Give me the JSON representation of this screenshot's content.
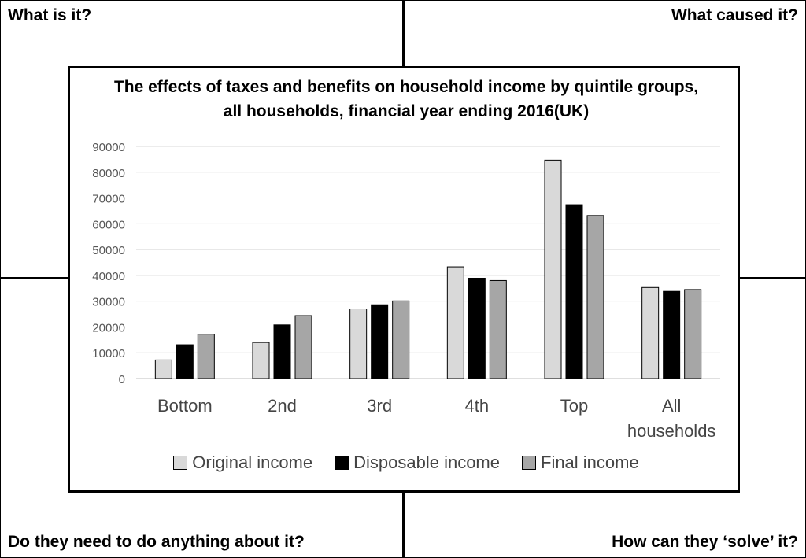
{
  "corners": {
    "top_left": "What is it?",
    "top_right": "What caused it?",
    "bottom_left": "Do they need to do anything about it?",
    "bottom_right": "How can they ‘solve’ it?"
  },
  "chart_data": {
    "type": "bar",
    "title_line1": "The effects of taxes and benefits on household income by quintile groups,",
    "title_line2": "all households, financial year ending 2016(UK)",
    "categories": [
      "Bottom",
      "2nd",
      "3rd",
      "4th",
      "Top",
      "All households"
    ],
    "series": [
      {
        "name": "Original income",
        "color": "#d9d9d9",
        "values": [
          7200,
          14000,
          27000,
          43300,
          84700,
          35300
        ]
      },
      {
        "name": "Disposable income",
        "color": "#000000",
        "values": [
          13100,
          20800,
          28600,
          38900,
          67400,
          33800
        ]
      },
      {
        "name": "Final income",
        "color": "#a6a6a6",
        "values": [
          17200,
          24400,
          30100,
          38000,
          63200,
          34500
        ]
      }
    ],
    "ylim": [
      0,
      90000
    ],
    "yticks": [
      0,
      10000,
      20000,
      30000,
      40000,
      50000,
      60000,
      70000,
      80000,
      90000
    ],
    "grid": true,
    "legend_position": "bottom"
  }
}
